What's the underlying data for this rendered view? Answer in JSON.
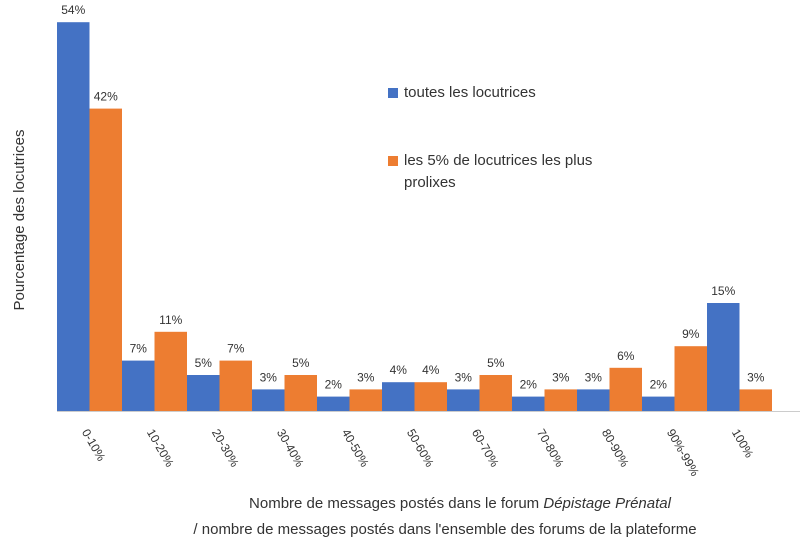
{
  "chart_data": {
    "type": "bar",
    "categories": [
      "0-10%",
      "10-20%",
      "20-30%",
      "30-40%",
      "40-50%",
      "50-60%",
      "60-70%",
      "70-80%",
      "80-90%",
      "90%-99%",
      "100%"
    ],
    "series": [
      {
        "name": "toutes les locutrices",
        "color": "#4472c4",
        "values": [
          54,
          7,
          5,
          3,
          2,
          4,
          3,
          2,
          3,
          2,
          15
        ],
        "value_labels": [
          "54%",
          "7%",
          "5%",
          "3%",
          "2%",
          "4%",
          "3%",
          "2%",
          "3%",
          "2%",
          "15%"
        ]
      },
      {
        "name": "les 5% de locutrices les plus prolixes",
        "color": "#ed7d31",
        "values": [
          42,
          11,
          7,
          5,
          3,
          4,
          5,
          3,
          6,
          9,
          3
        ],
        "value_labels": [
          "42%",
          "11%",
          "7%",
          "5%",
          "3%",
          "4%",
          "5%",
          "3%",
          "6%",
          "9%",
          "3%"
        ]
      }
    ],
    "ylim": [
      0,
      55
    ],
    "y_label": "Pourcentage des locutrices",
    "x_label": [
      "Nombre de messages postés dans le forum",
      "Dépistage Prénatal",
      "/ nombre de messages postés dans l'ensemble des forums de la plateforme"
    ]
  }
}
